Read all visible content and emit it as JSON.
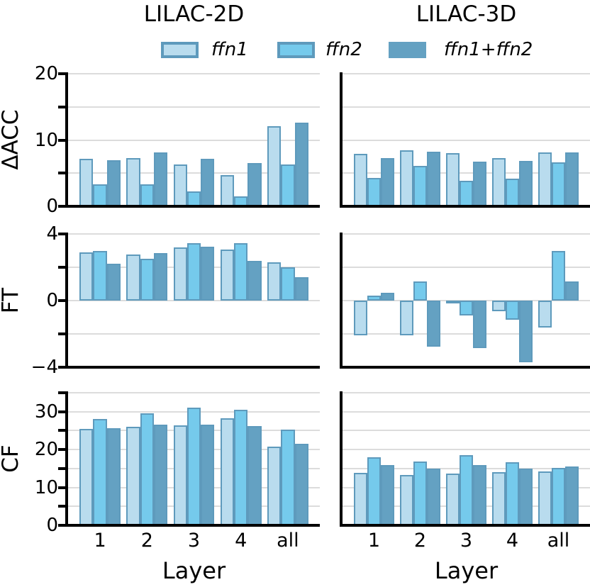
{
  "columns": [
    {
      "title": "LILAC-2D"
    },
    {
      "title": "LILAC-3D"
    }
  ],
  "legend": {
    "items": [
      {
        "label": "ffn1",
        "color": "#b9dcee",
        "edge": "#5e9abc"
      },
      {
        "label": "ffn2",
        "color": "#75caec",
        "edge": "#5e9abc"
      },
      {
        "label": "ffn1+ffn2",
        "color": "#64a1c2",
        "edge": "#64a1c2"
      }
    ]
  },
  "xlabel": "Layer",
  "categories": [
    "1",
    "2",
    "3",
    "4",
    "all"
  ],
  "colors": {
    "grid": "#dcdcdc",
    "axis": "#000000",
    "background": "#ffffff",
    "edge": "#5e9abc"
  },
  "rows": [
    {
      "label": "ΔACC",
      "ylim": [
        0,
        20
      ],
      "yticklabels": [
        "0",
        "10",
        "20"
      ],
      "ticks": [
        0,
        5,
        10,
        15,
        20
      ],
      "gridlines": [
        5,
        10,
        15,
        20
      ]
    },
    {
      "label": "FT",
      "ylim": [
        -4,
        4
      ],
      "yticklabels": [
        "−4",
        "0",
        "4"
      ],
      "ticks": [
        -4,
        -2,
        0,
        2,
        4
      ],
      "gridlines": [
        -2,
        0,
        2,
        4
      ]
    },
    {
      "label": "CF",
      "ylim": [
        0,
        35
      ],
      "yticklabels": [
        "0",
        "10",
        "20",
        "30"
      ],
      "ticks": [
        0,
        5,
        10,
        15,
        20,
        25,
        30,
        35
      ],
      "gridlines": [
        5,
        10,
        15,
        20,
        25,
        30,
        35
      ]
    }
  ],
  "chart_data": [
    {
      "type": "bar",
      "row": 0,
      "col": 0,
      "title": "LILAC-2D",
      "metric": "ΔACC",
      "ylim": [
        0,
        20
      ],
      "categories": [
        "1",
        "2",
        "3",
        "4",
        "all"
      ],
      "series": [
        {
          "name": "ffn1",
          "color": "#b9dcee",
          "values": [
            7.2,
            7.3,
            6.3,
            4.7,
            12.1
          ]
        },
        {
          "name": "ffn2",
          "color": "#75caec",
          "values": [
            3.3,
            3.3,
            2.2,
            1.5,
            6.3
          ]
        },
        {
          "name": "ffn1+ffn2",
          "color": "#64a1c2",
          "values": [
            7.0,
            8.1,
            7.2,
            6.5,
            12.6
          ]
        }
      ]
    },
    {
      "type": "bar",
      "row": 0,
      "col": 1,
      "title": "LILAC-3D",
      "metric": "ΔACC",
      "ylim": [
        0,
        20
      ],
      "categories": [
        "1",
        "2",
        "3",
        "4",
        "all"
      ],
      "series": [
        {
          "name": "ffn1",
          "color": "#b9dcee",
          "values": [
            7.9,
            8.4,
            8.0,
            7.3,
            8.1
          ]
        },
        {
          "name": "ffn2",
          "color": "#75caec",
          "values": [
            4.3,
            6.1,
            3.8,
            4.2,
            6.6
          ]
        },
        {
          "name": "ffn1+ffn2",
          "color": "#64a1c2",
          "values": [
            7.3,
            8.2,
            6.7,
            6.8,
            8.1
          ]
        }
      ]
    },
    {
      "type": "bar",
      "row": 1,
      "col": 0,
      "title": "LILAC-2D",
      "metric": "FT",
      "ylim": [
        -4,
        4
      ],
      "categories": [
        "1",
        "2",
        "3",
        "4",
        "all"
      ],
      "series": [
        {
          "name": "ffn1",
          "color": "#b9dcee",
          "values": [
            2.9,
            2.75,
            3.2,
            3.05,
            2.3
          ]
        },
        {
          "name": "ffn2",
          "color": "#75caec",
          "values": [
            3.0,
            2.5,
            3.45,
            3.45,
            2.0
          ]
        },
        {
          "name": "ffn1+ffn2",
          "color": "#64a1c2",
          "values": [
            2.2,
            2.85,
            3.25,
            2.4,
            1.4
          ]
        }
      ]
    },
    {
      "type": "bar",
      "row": 1,
      "col": 1,
      "title": "LILAC-3D",
      "metric": "FT",
      "ylim": [
        -4,
        4
      ],
      "categories": [
        "1",
        "2",
        "3",
        "4",
        "all"
      ],
      "series": [
        {
          "name": "ffn1",
          "color": "#b9dcee",
          "values": [
            -2.1,
            -2.1,
            -0.15,
            -0.65,
            -1.6
          ]
        },
        {
          "name": "ffn2",
          "color": "#75caec",
          "values": [
            0.3,
            1.15,
            -0.9,
            -1.15,
            3.0
          ]
        },
        {
          "name": "ffn1+ffn2",
          "color": "#64a1c2",
          "values": [
            0.45,
            -2.75,
            -2.85,
            -3.7,
            1.15
          ]
        }
      ]
    },
    {
      "type": "bar",
      "row": 2,
      "col": 0,
      "title": "LILAC-2D",
      "metric": "CF",
      "ylim": [
        0,
        35
      ],
      "categories": [
        "1",
        "2",
        "3",
        "4",
        "all"
      ],
      "series": [
        {
          "name": "ffn1",
          "color": "#b9dcee",
          "values": [
            25.4,
            26.1,
            26.3,
            28.3,
            20.8
          ]
        },
        {
          "name": "ffn2",
          "color": "#75caec",
          "values": [
            28.1,
            29.5,
            31.1,
            30.5,
            25.3
          ]
        },
        {
          "name": "ffn1+ffn2",
          "color": "#64a1c2",
          "values": [
            25.7,
            26.5,
            26.6,
            26.2,
            21.5
          ]
        }
      ]
    },
    {
      "type": "bar",
      "row": 2,
      "col": 1,
      "title": "LILAC-3D",
      "metric": "CF",
      "ylim": [
        0,
        35
      ],
      "categories": [
        "1",
        "2",
        "3",
        "4",
        "all"
      ],
      "series": [
        {
          "name": "ffn1",
          "color": "#b9dcee",
          "values": [
            13.9,
            13.2,
            13.6,
            14.1,
            14.2
          ]
        },
        {
          "name": "ffn2",
          "color": "#75caec",
          "values": [
            18.0,
            16.8,
            18.5,
            16.7,
            15.2
          ]
        },
        {
          "name": "ffn1+ffn2",
          "color": "#64a1c2",
          "values": [
            15.9,
            14.9,
            16.0,
            15.0,
            15.5
          ]
        }
      ]
    }
  ]
}
